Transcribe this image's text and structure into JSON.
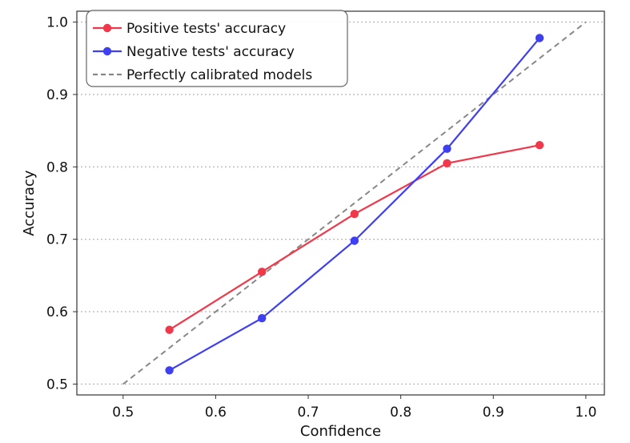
{
  "chart_data": {
    "type": "line",
    "title": "",
    "xlabel": "Confidence",
    "ylabel": "Accuracy",
    "xlim": [
      0.45,
      1.02
    ],
    "ylim": [
      0.485,
      1.015
    ],
    "xticks": [
      0.5,
      0.6,
      0.7,
      0.8,
      0.9,
      1.0
    ],
    "yticks": [
      0.5,
      0.6,
      0.7,
      0.8,
      0.9,
      1.0
    ],
    "xtick_labels": [
      "0.5",
      "0.6",
      "0.7",
      "0.8",
      "0.9",
      "1.0"
    ],
    "ytick_labels": [
      "0.5",
      "0.6",
      "0.7",
      "0.8",
      "0.9",
      "1.0"
    ],
    "grid": "horizontal dotted",
    "legend_position": "top-left",
    "x": [
      0.55,
      0.65,
      0.75,
      0.85,
      0.95
    ],
    "series": [
      {
        "name": "Positive tests' accuracy",
        "color": "#f0384a",
        "values": [
          0.575,
          0.655,
          0.735,
          0.805,
          0.83
        ]
      },
      {
        "name": "Negative tests' accuracy",
        "color": "#3f3ff2",
        "values": [
          0.519,
          0.591,
          0.698,
          0.825,
          0.978
        ]
      }
    ],
    "reference_line": {
      "name": "Perfectly calibrated models",
      "color": "#888888",
      "style": "dashed",
      "x": [
        0.5,
        1.0
      ],
      "y": [
        0.5,
        1.0
      ]
    }
  }
}
